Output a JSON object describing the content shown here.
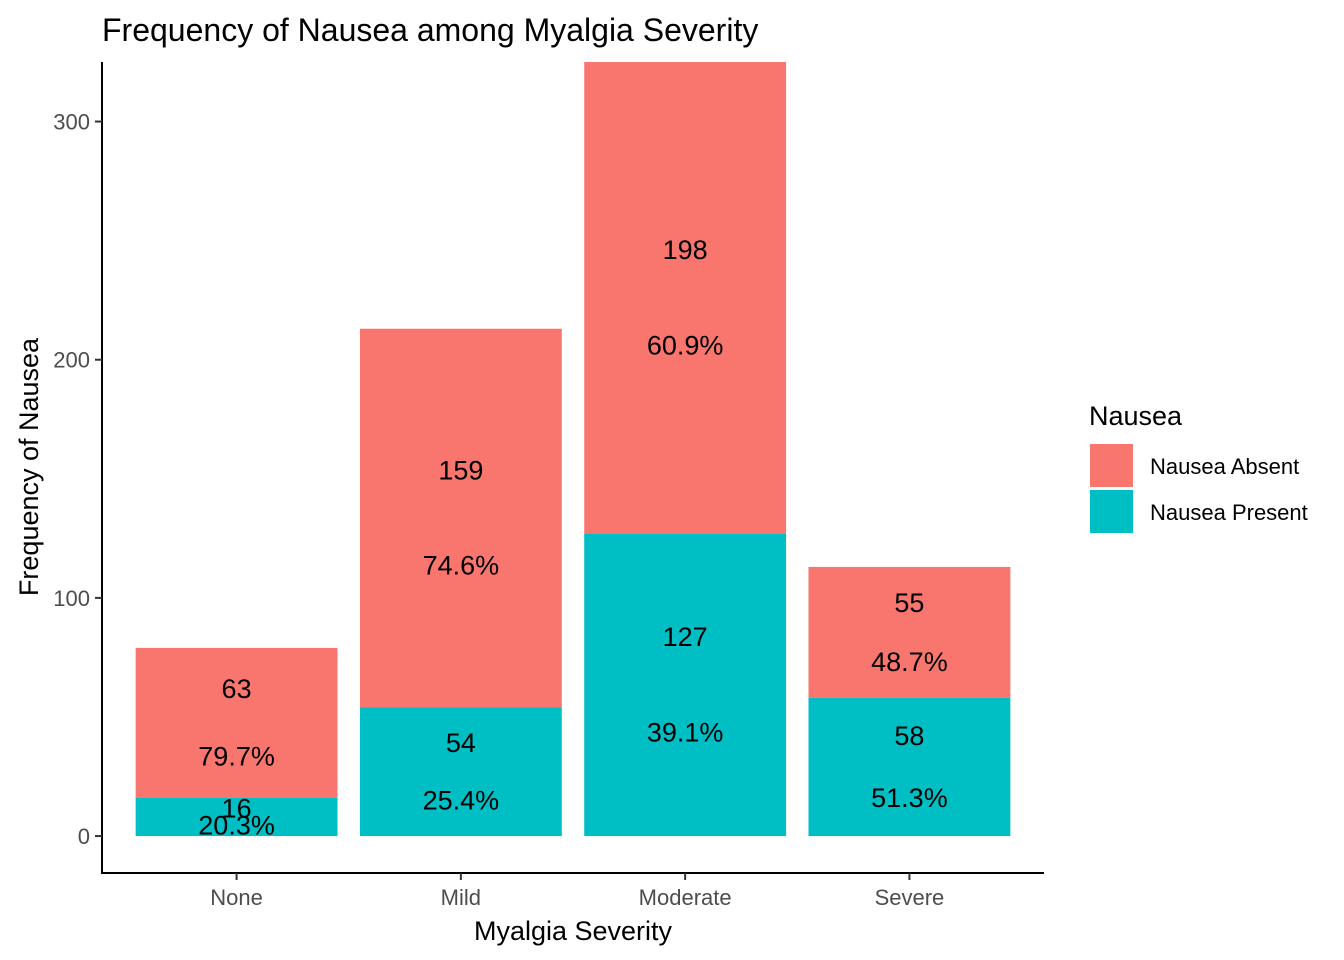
{
  "chart_data": {
    "type": "bar",
    "stacked": true,
    "title": "Frequency of Nausea among Myalgia Severity",
    "xlabel": "Myalgia Severity",
    "ylabel": "Frequency of Nausea",
    "categories": [
      "None",
      "Mild",
      "Moderate",
      "Severe"
    ],
    "ylim": [
      -15.5,
      325
    ],
    "yticks": [
      0,
      100,
      200,
      300
    ],
    "grid": false,
    "legend": {
      "title": "Nausea",
      "position": "right"
    },
    "series": [
      {
        "name": "Nausea Present",
        "color": "#00BFC4",
        "values": [
          16,
          54,
          127,
          58
        ],
        "labels": [
          "16",
          "54",
          "127",
          "58"
        ],
        "percent_labels": [
          "20.3%",
          "25.4%",
          "39.1%",
          "51.3%"
        ]
      },
      {
        "name": "Nausea Absent",
        "color": "#F8766D",
        "values": [
          63,
          159,
          198,
          55
        ],
        "labels": [
          "63",
          "159",
          "198",
          "55"
        ],
        "percent_labels": [
          "79.7%",
          "74.6%",
          "60.9%",
          "48.7%"
        ]
      }
    ]
  }
}
